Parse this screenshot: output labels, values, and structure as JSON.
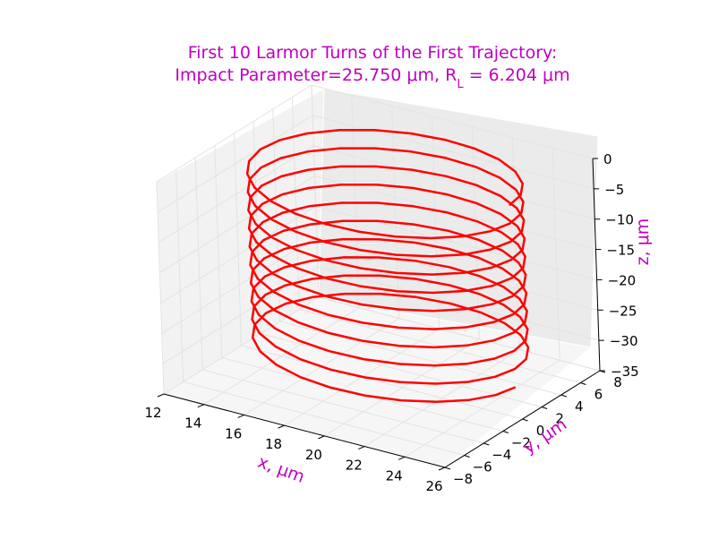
{
  "chart_data": {
    "type": "line",
    "projection": "3d",
    "title_line1": "First 10 Larmor Turns of the First Trajectory:",
    "title_line2": "Impact Parameter=25.750 μm, R",
    "title_sub": "L",
    "title_line2_tail": " = 6.204 μm",
    "xlabel": "x, μm",
    "ylabel": "y, μm",
    "zlabel": "z, μm",
    "xlim": [
      12,
      26
    ],
    "ylim": [
      -8,
      8
    ],
    "zlim": [
      -35,
      0
    ],
    "xticks": [
      "12",
      "14",
      "16",
      "18",
      "20",
      "22",
      "24",
      "26"
    ],
    "yticks": [
      "−8",
      "−6",
      "−4",
      "−2",
      "0",
      "2",
      "4",
      "6",
      "8"
    ],
    "zticks": [
      "0",
      "−5",
      "−10",
      "−15",
      "−20",
      "−25",
      "−30",
      "−35"
    ],
    "grid": true,
    "series": [
      {
        "color": "#ff0000",
        "helix": {
          "center_x": 19.5,
          "center_y": 0.0,
          "radius": 6.204,
          "turns": 10,
          "z_start": 0.0,
          "z_end": -30.0,
          "points_per_turn": 24
        }
      }
    ]
  }
}
